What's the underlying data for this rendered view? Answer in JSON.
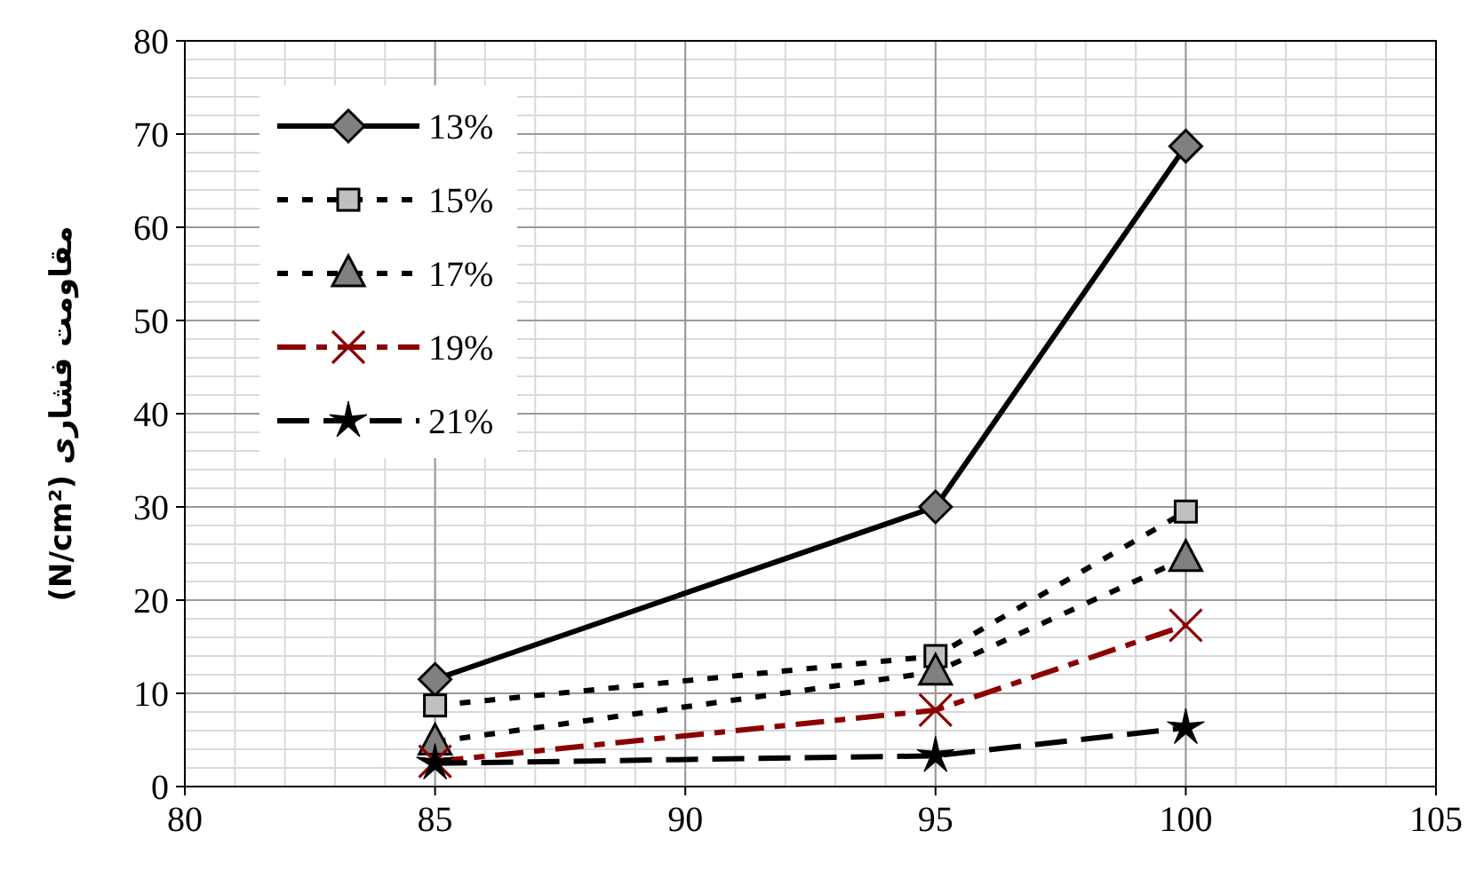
{
  "chart_data": {
    "type": "line",
    "ylabel": "مقاومت فشاری (N/cm²)",
    "x": [
      85,
      95,
      100
    ],
    "series": [
      {
        "name": "13%",
        "color": "#000000",
        "marker": "diamond",
        "line_style": "solid",
        "values": [
          11.5,
          30,
          68.7
        ]
      },
      {
        "name": "15%",
        "color": "#000000",
        "marker": "square",
        "line_style": "dotted",
        "values": [
          8.7,
          14,
          29.5
        ]
      },
      {
        "name": "17%",
        "color": "#000000",
        "marker": "triangle",
        "line_style": "dotted",
        "values": [
          4.8,
          12.3,
          24.5
        ]
      },
      {
        "name": "19%",
        "color": "#8b0000",
        "marker": "cross",
        "line_style": "dashed",
        "values": [
          2.7,
          8.2,
          17.3
        ]
      },
      {
        "name": "21%",
        "color": "#000000",
        "marker": "star",
        "line_style": "dashed",
        "values": [
          2.5,
          3.3,
          6.3
        ]
      }
    ],
    "xlim": [
      80,
      105
    ],
    "xticks": [
      80,
      85,
      90,
      95,
      100,
      105
    ],
    "ylim": [
      0,
      80
    ],
    "yticks": [
      0,
      10,
      20,
      30,
      40,
      50,
      60,
      70,
      80
    ],
    "grid": true,
    "legend": "top left"
  }
}
